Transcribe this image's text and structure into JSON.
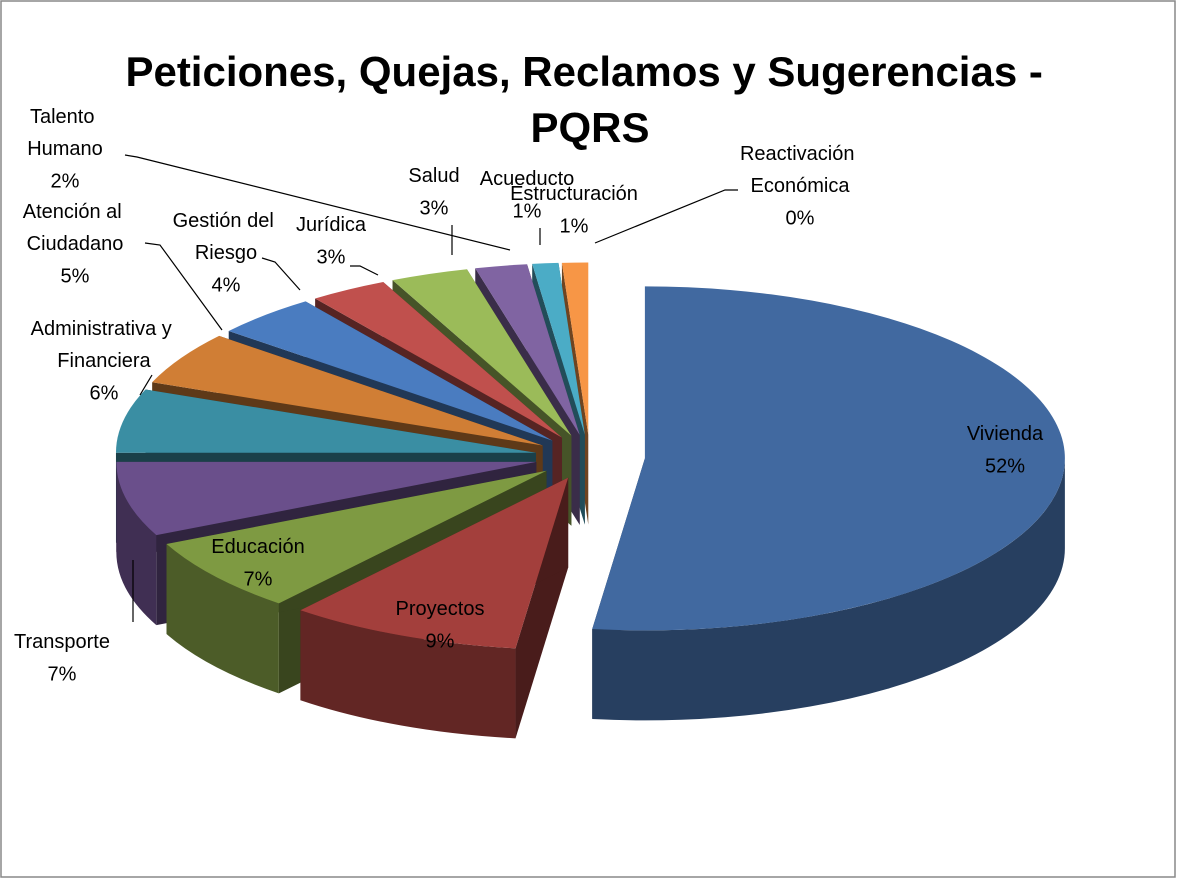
{
  "chart_data": {
    "type": "pie3d",
    "title": "Peticiones, Quejas, Reclamos y Sugerencias - PQRS",
    "categories": [
      "Vivienda",
      "Proyectos",
      "Educación",
      "Transporte",
      "Administrativa y Financiera",
      "Atención al Ciudadano",
      "Gestión del Riesgo",
      "Jurídica",
      "Salud",
      "Talento Humano",
      "Acueducto",
      "Estructuración",
      "Reactivación Económica"
    ],
    "values": [
      52,
      9,
      7,
      7,
      6,
      5,
      4,
      3,
      3,
      2,
      1,
      1,
      0
    ],
    "value_labels": [
      "52%",
      "9%",
      "7%",
      "7%",
      "6%",
      "5%",
      "4%",
      "3%",
      "3%",
      "2%",
      "1%",
      "1%",
      "0%"
    ],
    "colors": [
      "#4169a0",
      "#a33f3c",
      "#7e9a42",
      "#6a4f8b",
      "#3a8ea3",
      "#d07e35",
      "#4a7cc0",
      "#c0504d",
      "#9bbb59",
      "#8064a2",
      "#4bacc6",
      "#f79646",
      "#a0a0a0"
    ]
  }
}
